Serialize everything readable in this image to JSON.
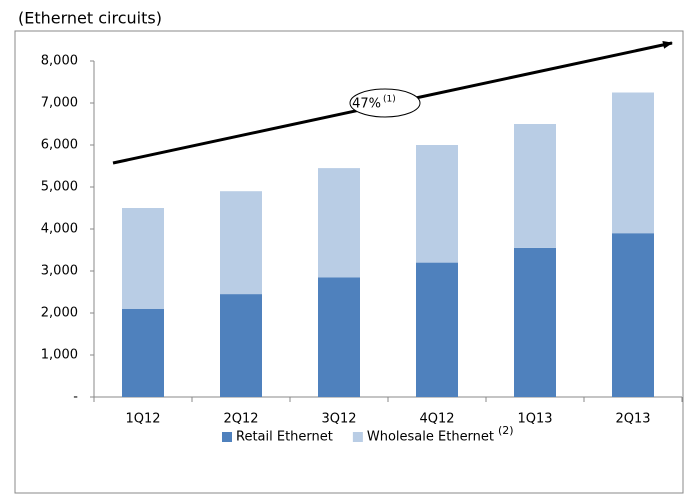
{
  "chart_data": {
    "type": "stacked_bar",
    "subtitle": "(Ethernet circuits)",
    "categories": [
      "1Q12",
      "2Q12",
      "3Q12",
      "4Q12",
      "1Q13",
      "2Q13"
    ],
    "series": [
      {
        "name": "Retail Ethernet",
        "color": "#4f81bd",
        "values": [
          2100,
          2450,
          2850,
          3200,
          3550,
          3900
        ]
      },
      {
        "name": "Wholesale Ethernet",
        "color": "#b9cde5",
        "values": [
          2400,
          2450,
          2600,
          2800,
          2950,
          3350
        ]
      }
    ],
    "legend_note": "(2)",
    "annotation": {
      "text": "47%",
      "note": "(1)"
    },
    "ylim": [
      0,
      8000
    ],
    "yticks": [
      {
        "value": 0,
        "label": "-"
      },
      {
        "value": 1000,
        "label": "1,000"
      },
      {
        "value": 2000,
        "label": "2,000"
      },
      {
        "value": 3000,
        "label": "3,000"
      },
      {
        "value": 4000,
        "label": "4,000"
      },
      {
        "value": 5000,
        "label": "5,000"
      },
      {
        "value": 6000,
        "label": "6,000"
      },
      {
        "value": 7000,
        "label": "7,000"
      },
      {
        "value": 8000,
        "label": "8,000"
      }
    ],
    "grid": false,
    "legend": "bottom"
  }
}
